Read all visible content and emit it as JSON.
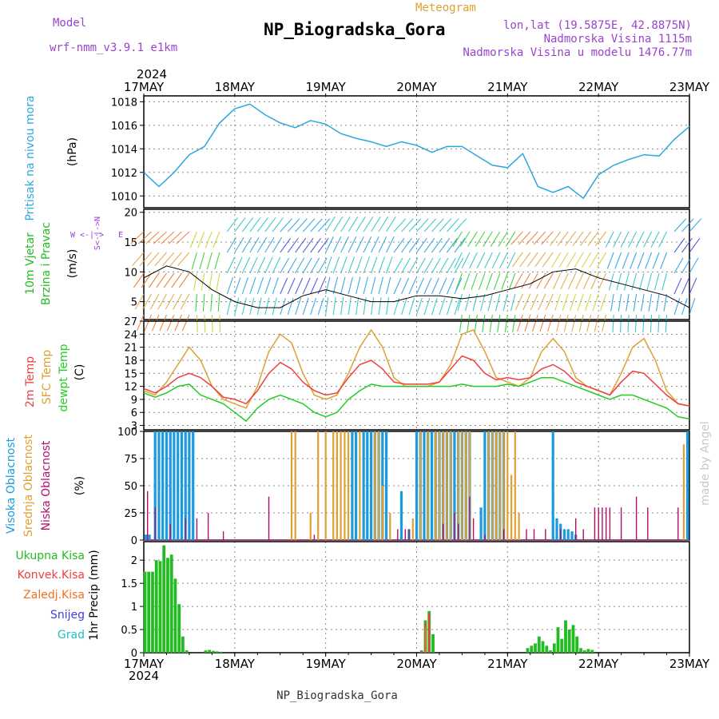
{
  "header": {
    "model_label": "Model",
    "model_name": "wrf-nmm_v3.9.1  e1km",
    "title": "NP_Biogradska_Gora",
    "subtitle": "Meteogram",
    "lonlat": "lon,lat (19.5875E, 42.8875N)",
    "altitude": "Nadmorska Visina 1115m",
    "model_altitude": "Nadmorska Visina u modelu 1476.77m",
    "footer": "NP_Biogradska_Gora",
    "watermark": "made by Angel"
  },
  "colors": {
    "pressure": "#2aa8e0",
    "t2m": "#ee4040",
    "sfc": "#e0a030",
    "dewpt": "#22cc22",
    "high_cloud": "#1a9be0",
    "mid_cloud": "#e0a030",
    "low_cloud": "#b0106a",
    "total_precip": "#22bb22",
    "conv_precip": "#ee4040",
    "frozen_precip": "#f07020",
    "snow": "#4040dd",
    "hail": "#20c0c0",
    "model_text": "#9a44cc"
  },
  "time_axis": {
    "year": "2024",
    "days": [
      "17MAY",
      "18MAY",
      "19MAY",
      "20MAY",
      "21MAY",
      "22MAY",
      "23MAY"
    ]
  },
  "panel_labels": {
    "pressure": [
      "Pritisak na nivou mora",
      "(hPa)"
    ],
    "wind": [
      "10m Vjetar",
      "Brzina i Pravac",
      "(m/s)"
    ],
    "wind_compass": [
      "W",
      "<-|->",
      "E",
      "S<-|->N"
    ],
    "temp": [
      "2m Temp",
      "SFC Temp",
      "dewpt Temp",
      "(C)"
    ],
    "cloud": [
      "Visoka Oblacnost",
      "Srednja Oblacnost",
      "Niska Oblacnost",
      "(%)"
    ],
    "precip_legend": [
      "Ukupna Kisa",
      "Konvek.Kisa",
      "Zaledj.Kisa",
      "Snijeg",
      "Grad"
    ],
    "precip_unit": "1hr Precip (mm)"
  },
  "chart_data": [
    {
      "type": "line",
      "name": "pressure",
      "ylim": [
        1009,
        1018.5
      ],
      "yticks": [
        "1010",
        "1012",
        "1014",
        "1016",
        "1018"
      ],
      "x": [
        0,
        4,
        8,
        12,
        16,
        20,
        24,
        28,
        32,
        36,
        40,
        44,
        48,
        52,
        56,
        60,
        64,
        68,
        72,
        76,
        80,
        84,
        88,
        92,
        96,
        100,
        104,
        108,
        112,
        116,
        120,
        124,
        128,
        132,
        136,
        140,
        144
      ],
      "values": [
        1012.0,
        1010.8,
        1012.0,
        1013.5,
        1014.2,
        1016.2,
        1017.4,
        1017.8,
        1016.9,
        1016.2,
        1015.8,
        1016.4,
        1016.1,
        1015.3,
        1014.9,
        1014.6,
        1014.2,
        1014.6,
        1014.3,
        1013.7,
        1014.2,
        1014.2,
        1013.4,
        1012.6,
        1012.4,
        1013.6,
        1010.8,
        1010.3,
        1010.8,
        1009.8,
        1011.8,
        1012.6,
        1013.1,
        1013.5,
        1013.4,
        1014.8,
        1015.9
      ]
    },
    {
      "type": "line",
      "name": "wind",
      "ylim": [
        2,
        20.5
      ],
      "yticks": [
        "5",
        "10",
        "15",
        "20"
      ],
      "x": [
        0,
        6,
        12,
        18,
        24,
        30,
        36,
        42,
        48,
        54,
        60,
        66,
        72,
        78,
        84,
        90,
        96,
        102,
        108,
        114,
        120,
        126,
        132,
        138,
        144
      ],
      "values": [
        9,
        11,
        10,
        7,
        5,
        4,
        4,
        6,
        7,
        6,
        5,
        5,
        6,
        6,
        5.5,
        6,
        7,
        8,
        10,
        10.5,
        9,
        8,
        7,
        6,
        4
      ]
    },
    {
      "type": "line",
      "name": "temperature",
      "ylim": [
        2,
        27
      ],
      "yticks": [
        "3",
        "6",
        "9",
        "12",
        "15",
        "18",
        "21",
        "24",
        "27"
      ],
      "x": [
        0,
        3,
        6,
        9,
        12,
        15,
        18,
        21,
        24,
        27,
        30,
        33,
        36,
        39,
        42,
        45,
        48,
        51,
        54,
        57,
        60,
        63,
        66,
        69,
        72,
        75,
        78,
        81,
        84,
        87,
        90,
        93,
        96,
        99,
        102,
        105,
        108,
        111,
        114,
        117,
        120,
        123,
        126,
        129,
        132,
        135,
        138,
        141,
        144
      ],
      "series": [
        {
          "name": "SFC",
          "values": [
            11,
            10,
            13,
            17,
            21,
            18,
            12,
            9,
            8,
            7,
            12,
            20,
            24,
            22,
            15,
            10,
            9,
            10,
            15,
            21,
            25,
            21,
            14,
            12,
            12,
            12,
            13,
            17,
            24,
            25,
            20,
            14,
            13,
            12,
            14,
            20,
            23,
            20,
            14,
            12,
            11,
            10,
            15,
            21,
            23,
            18,
            11,
            8,
            7.5
          ]
        },
        {
          "name": "2m",
          "values": [
            11.5,
            10.5,
            12,
            14,
            15,
            14,
            12,
            9.5,
            9,
            8,
            11,
            15,
            17.5,
            16,
            13,
            11,
            10,
            10.5,
            14,
            17,
            18,
            16,
            13,
            12.5,
            12.5,
            12.5,
            13,
            16,
            19,
            18,
            15,
            13.5,
            14,
            13.5,
            14,
            16,
            17,
            15.5,
            13,
            12,
            11,
            10,
            13,
            15.5,
            15,
            12.5,
            10,
            8,
            7.5
          ]
        },
        {
          "name": "dewpt",
          "values": [
            10.5,
            9.5,
            10.5,
            12,
            12.5,
            10,
            9,
            8,
            6,
            4,
            7,
            9,
            10,
            9,
            8,
            6,
            5,
            6,
            9,
            11,
            12.5,
            12,
            12,
            12,
            12,
            12,
            12,
            12,
            12.5,
            12,
            12,
            12,
            12.5,
            12,
            13,
            14,
            14,
            13,
            12,
            11,
            10,
            9,
            10,
            10,
            9,
            8,
            7,
            5,
            4.5
          ]
        }
      ]
    },
    {
      "type": "bar",
      "name": "cloud",
      "ylim": [
        0,
        100
      ],
      "yticks": [
        "0",
        "25",
        "50",
        "75",
        "100"
      ],
      "series": [
        {
          "name": "Visoka Oblacnost",
          "x": [
            0.5,
            1.5,
            3,
            4,
            5,
            6,
            7,
            8,
            9,
            10,
            11,
            12,
            13,
            55,
            56,
            58,
            59,
            60,
            61,
            62,
            63,
            64,
            68,
            70,
            72,
            73,
            74,
            75,
            76,
            77,
            78,
            79,
            80,
            81,
            82,
            83,
            84,
            85,
            86,
            89,
            90,
            91,
            92,
            93,
            94,
            95,
            108,
            109,
            110,
            111,
            112,
            113,
            114,
            143.5
          ],
          "values": [
            5,
            5,
            100,
            100,
            100,
            100,
            100,
            100,
            100,
            100,
            100,
            100,
            100,
            100,
            100,
            100,
            100,
            100,
            100,
            100,
            100,
            100,
            45,
            10,
            100,
            100,
            100,
            100,
            100,
            100,
            100,
            100,
            100,
            100,
            100,
            100,
            100,
            100,
            100,
            30,
            100,
            100,
            100,
            100,
            100,
            100,
            100,
            20,
            15,
            10,
            10,
            8,
            5,
            100
          ]
        },
        {
          "name": "Srednja Oblacnost",
          "x": [
            39,
            40,
            44,
            46,
            48,
            50,
            51,
            52,
            53,
            54,
            57,
            61,
            62,
            63,
            65,
            71,
            73,
            75,
            77,
            78,
            79,
            80,
            81,
            83,
            84,
            85,
            86,
            91,
            92,
            93,
            94,
            95,
            96,
            97,
            98,
            99,
            142.5
          ],
          "values": [
            100,
            100,
            25,
            100,
            100,
            100,
            100,
            100,
            100,
            100,
            100,
            100,
            100,
            50,
            25,
            20,
            100,
            100,
            100,
            100,
            100,
            100,
            100,
            100,
            100,
            100,
            100,
            100,
            100,
            100,
            100,
            100,
            100,
            60,
            100,
            25,
            88
          ]
        },
        {
          "name": "Niska Oblacnost",
          "x": [
            1,
            3,
            7,
            11,
            14,
            17,
            21,
            33,
            45,
            67,
            69,
            70,
            79,
            82,
            83,
            86,
            87,
            90,
            95,
            101,
            103,
            106,
            110,
            114,
            116,
            119,
            120,
            121,
            122,
            123,
            126,
            130,
            133,
            141
          ],
          "values": [
            45,
            30,
            15,
            20,
            20,
            25,
            8,
            40,
            5,
            10,
            10,
            10,
            15,
            25,
            15,
            40,
            20,
            5,
            10,
            10,
            10,
            10,
            10,
            20,
            10,
            30,
            30,
            30,
            30,
            30,
            30,
            40,
            30,
            30
          ]
        }
      ]
    },
    {
      "type": "bar",
      "name": "precip",
      "ylim": [
        0,
        2.4
      ],
      "yticks": [
        "0",
        "0.5",
        "1",
        "1.5",
        "2"
      ],
      "series": [
        {
          "name": "Ukupna Kisa",
          "x": [
            0,
            1,
            2,
            3,
            4,
            5,
            6,
            7,
            8,
            9,
            10,
            11,
            16,
            17,
            18,
            19,
            20,
            73,
            74,
            75,
            76,
            101,
            102,
            103,
            104,
            105,
            106,
            107,
            108,
            109,
            110,
            111,
            112,
            113,
            114,
            115,
            116,
            117,
            118
          ],
          "values": [
            1.75,
            1.75,
            1.75,
            2.0,
            1.98,
            2.32,
            2.05,
            2.12,
            1.6,
            1.05,
            0.35,
            0.05,
            0.05,
            0.06,
            0.04,
            0.03,
            0.02,
            0.05,
            0.7,
            0.9,
            0.4,
            0.1,
            0.15,
            0.2,
            0.35,
            0.25,
            0.15,
            0.05,
            0.2,
            0.55,
            0.3,
            0.7,
            0.5,
            0.6,
            0.35,
            0.1,
            0.05,
            0.08,
            0.06
          ]
        },
        {
          "name": "Konvek.Kisa",
          "x": [
            73,
            74,
            75
          ],
          "values": [
            0.04,
            0.65,
            0.85
          ]
        },
        {
          "name": "Zaledj.Kisa",
          "x": [
            74
          ],
          "values": [
            0.55
          ]
        }
      ]
    }
  ]
}
